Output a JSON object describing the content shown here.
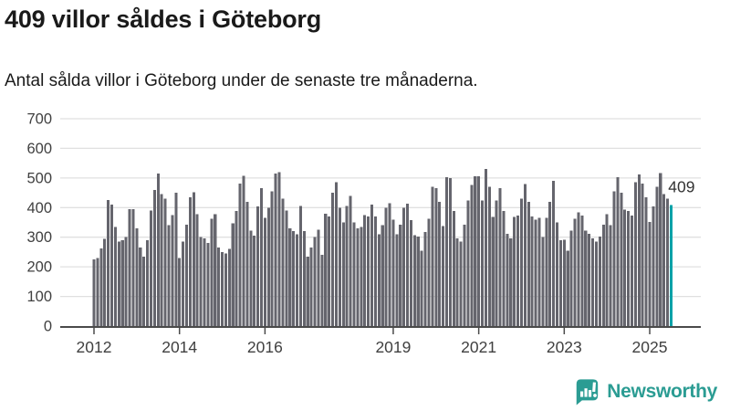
{
  "header": {
    "title": "409 villor såldes i Göteborg",
    "subtitle": "Antal sålda villor i Göteborg under de senaste tre månaderna."
  },
  "chart_data": {
    "type": "bar",
    "title": "409 villor såldes i Göteborg",
    "description": "Antal sålda villor i Göteborg under de senaste tre månaderna.",
    "frequency": "monthly",
    "x_start": "2012-01",
    "x_end": "2025-07",
    "values": [
      225,
      230,
      262,
      295,
      425,
      410,
      335,
      285,
      290,
      300,
      395,
      395,
      330,
      265,
      235,
      290,
      390,
      460,
      515,
      445,
      430,
      340,
      375,
      450,
      230,
      286,
      342,
      435,
      452,
      378,
      301,
      296,
      280,
      363,
      378,
      265,
      250,
      245,
      260,
      347,
      389,
      481,
      507,
      419,
      322,
      306,
      404,
      466,
      365,
      400,
      455,
      515,
      520,
      430,
      390,
      330,
      320,
      310,
      405,
      320,
      235,
      265,
      300,
      325,
      240,
      380,
      370,
      450,
      485,
      400,
      350,
      405,
      440,
      350,
      330,
      335,
      375,
      370,
      410,
      370,
      310,
      340,
      400,
      415,
      360,
      310,
      342,
      399,
      414,
      358,
      307,
      302,
      255,
      317,
      363,
      471,
      466,
      419,
      337,
      502,
      500,
      388,
      296,
      286,
      342,
      424,
      476,
      505,
      505,
      424,
      530,
      471,
      368,
      424,
      466,
      388,
      312,
      296,
      368,
      373,
      430,
      480,
      420,
      370,
      360,
      365,
      300,
      365,
      420,
      490,
      350,
      290,
      291,
      255,
      322,
      363,
      384,
      373,
      322,
      312,
      296,
      286,
      302,
      342,
      378,
      340,
      455,
      502,
      450,
      393,
      388,
      373,
      486,
      512,
      481,
      435,
      352,
      404,
      471,
      517,
      445,
      430,
      409
    ],
    "highlight": {
      "index": 162,
      "value": 409,
      "label": "409"
    },
    "ylim": [
      0,
      700
    ],
    "y_ticks": [
      0,
      100,
      200,
      300,
      400,
      500,
      600,
      700
    ],
    "x_tick_labels": [
      "2012",
      "2014",
      "2016",
      "2019",
      "2021",
      "2023",
      "2025"
    ],
    "x_tick_month_index": [
      0,
      24,
      48,
      84,
      108,
      132,
      156
    ],
    "grid": "horizontal",
    "legend": "none",
    "bar_color": "#65656d",
    "highlight_color": "#00a2a8",
    "grid_color": "#e0e0e0",
    "axis_color": "#4a4a4a",
    "tick_label_color": "#404040"
  },
  "attribution": {
    "brand": "Newsworthy",
    "logo_color": "#2b9c93",
    "logo_icon": "bar-chart-speech-bubble"
  }
}
